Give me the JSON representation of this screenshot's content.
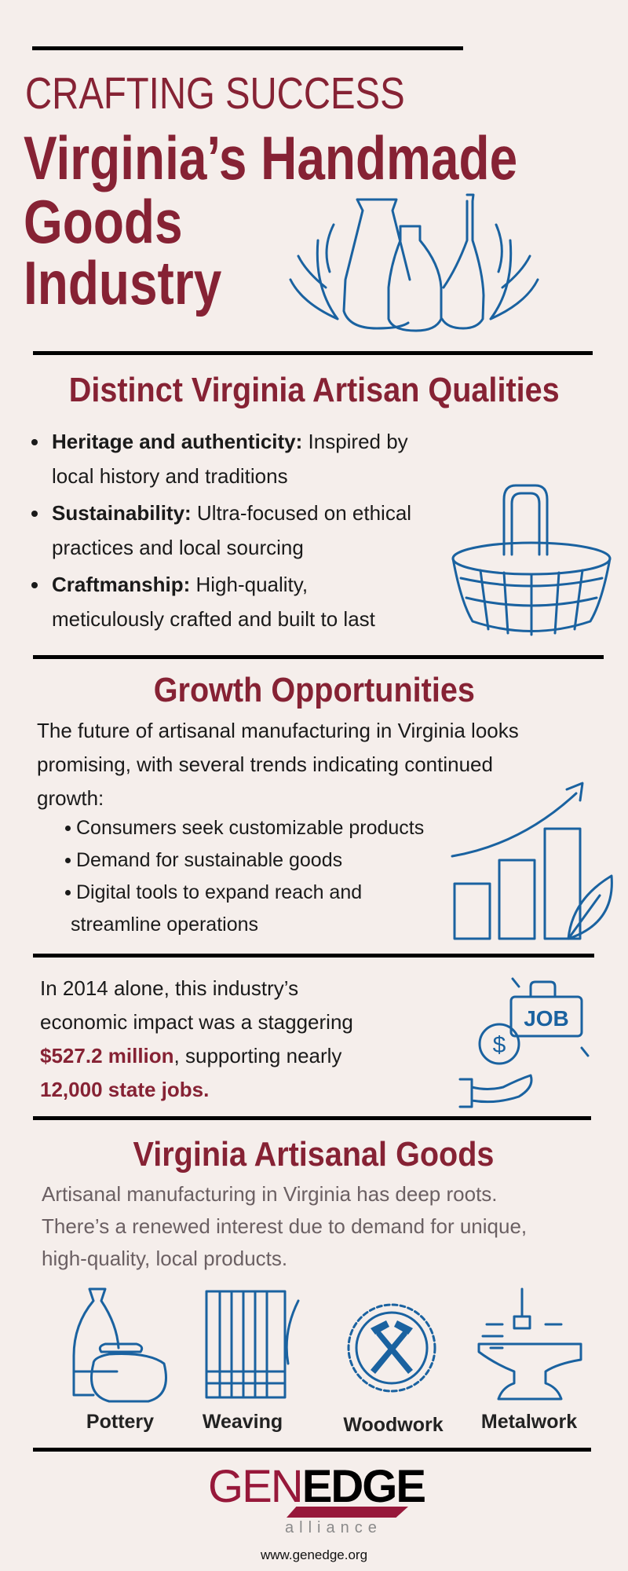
{
  "header": {
    "kicker": "CRAFTING SUCCESS",
    "title_lines": [
      "Virginia’s Handmade",
      "Goods",
      "Industry"
    ]
  },
  "qualities": {
    "heading": "Distinct Virginia Artisan Qualities",
    "items": [
      {
        "term": "Heritage and authenticity:",
        "line1_rest": " Inspired by",
        "line2": "local history and traditions"
      },
      {
        "term": "Sustainability:",
        "line1_rest": " Ultra-focused on ethical",
        "line2": "practices and local sourcing"
      },
      {
        "term": "Craftmanship:",
        "line1_rest": " High-quality,",
        "line2": "meticulously crafted and built to last"
      }
    ]
  },
  "growth": {
    "heading": "Growth Opportunities",
    "intro_lines": [
      "The future of artisanal manufacturing in Virginia looks",
      "promising, with several trends indicating continued",
      "growth:"
    ],
    "items": [
      "Consumers seek customizable products",
      "Demand for sustainable goods",
      "Digital tools to expand reach and"
    ],
    "item3_cont": "streamline operations"
  },
  "impact": {
    "line1": "In 2014 alone, this industry’s",
    "line2": "economic impact was a staggering",
    "amount": "$527.2 million",
    "line3_rest": ", supporting nearly",
    "jobs": "12,000 state jobs.",
    "job_icon_text": "JOB",
    "dollar_icon_text": "$"
  },
  "goods": {
    "heading": "Virginia Artisanal Goods",
    "lines": [
      "Artisanal manufacturing in Virginia has deep roots.",
      "There’s a renewed interest due to demand for unique,",
      "high-quality, local products."
    ],
    "crafts": [
      "Pottery",
      "Weaving",
      "Woodwork",
      "Metalwork"
    ]
  },
  "footer": {
    "logo_gen": "GEN",
    "logo_edge": "EDGE",
    "logo_sub": "alliance",
    "url": "www.genedge.org"
  },
  "colors": {
    "background": "#f5eeeb",
    "accent": "#862234",
    "icon": "#1a62a0",
    "body_gray": "#6b6063"
  }
}
